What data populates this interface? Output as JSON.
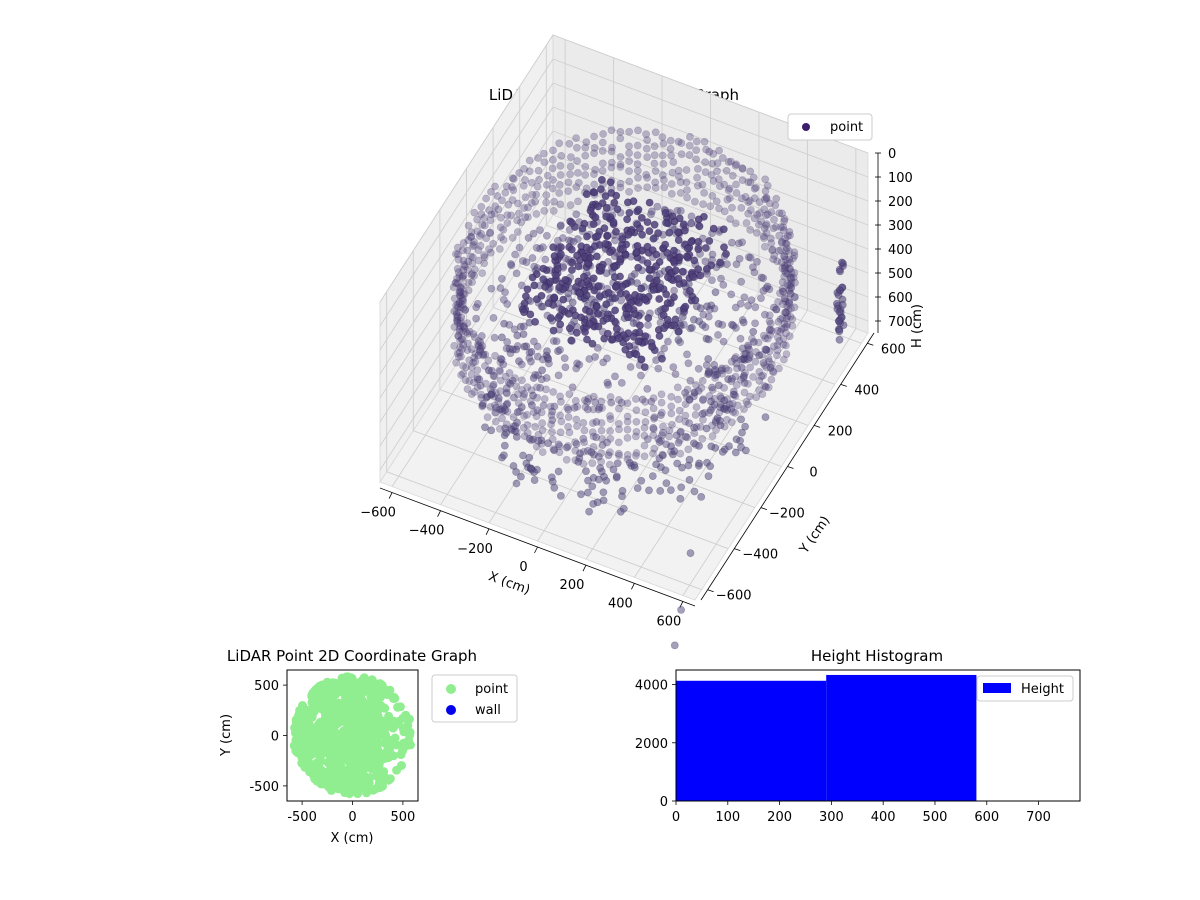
{
  "chart_data": [
    {
      "type": "scatter",
      "projection": "3d",
      "title": "LiDAR Point 3D Coordinate Graph",
      "xlabel": "X (cm)",
      "ylabel": "Y (cm)",
      "zlabel": "H (cm)",
      "xlim": [
        -650,
        650
      ],
      "ylim": [
        -650,
        650
      ],
      "zlim": [
        750,
        0
      ],
      "z_axis_inverted": true,
      "x_ticks": [
        "−600",
        "−400",
        "−200",
        "0",
        "200",
        "400",
        "600"
      ],
      "y_ticks": [
        "−600",
        "−400",
        "−200",
        "0",
        "200",
        "400",
        "600"
      ],
      "z_ticks": [
        "0",
        "100",
        "200",
        "300",
        "400",
        "500",
        "600",
        "700"
      ],
      "grid": true,
      "legend": {
        "position": "top-right",
        "entries": [
          "point"
        ]
      },
      "series": [
        {
          "name": "point",
          "color": "#3b1f6b",
          "description_points": {
            "ceiling_ring": {
              "radius": 620,
              "h_range": [
                150,
                420
              ]
            },
            "ceiling_cluster": {
              "x_range": [
                -300,
                250
              ],
              "y_range": [
                -250,
                350
              ],
              "h_range": [
                150,
                320
              ]
            },
            "floor_ring": {
              "radius": 520,
              "h_range": [
                640,
                720
              ]
            },
            "outliers": [
              {
                "x": 560,
                "y": -520,
                "h": 700
              },
              {
                "x": 620,
                "y": -700,
                "h": 760
              },
              {
                "x": 660,
                "y": -820,
                "h": 790
              }
            ]
          }
        }
      ]
    },
    {
      "type": "scatter",
      "title": "LiDAR Point 2D Coordinate Graph",
      "xlabel": "X (cm)",
      "ylabel": "Y (cm)",
      "xlim": [
        -650,
        650
      ],
      "ylim": [
        -650,
        650
      ],
      "x_ticks": [
        -500,
        0,
        500
      ],
      "y_ticks": [
        -500,
        0,
        500
      ],
      "legend": {
        "position": "outside-right",
        "entries": [
          "point",
          "wall"
        ]
      },
      "series": [
        {
          "name": "point",
          "color": "#90ee90",
          "region": {
            "center": [
              0,
              0
            ],
            "radius": 600
          }
        },
        {
          "name": "wall",
          "color": "#0000ee",
          "values": []
        }
      ]
    },
    {
      "type": "bar",
      "title": "Height Histogram",
      "xlim": [
        0,
        780
      ],
      "ylim": [
        0,
        4500
      ],
      "x_ticks": [
        0,
        100,
        200,
        300,
        400,
        500,
        600,
        700
      ],
      "y_ticks": [
        0,
        2000,
        4000
      ],
      "legend": {
        "position": "top-right",
        "entries": [
          "Height"
        ]
      },
      "series": [
        {
          "name": "Height",
          "color": "#0000ff",
          "bins": [
            {
              "from": 0,
              "to": 290,
              "count": 4130
            },
            {
              "from": 290,
              "to": 580,
              "count": 4330
            }
          ]
        }
      ]
    }
  ]
}
